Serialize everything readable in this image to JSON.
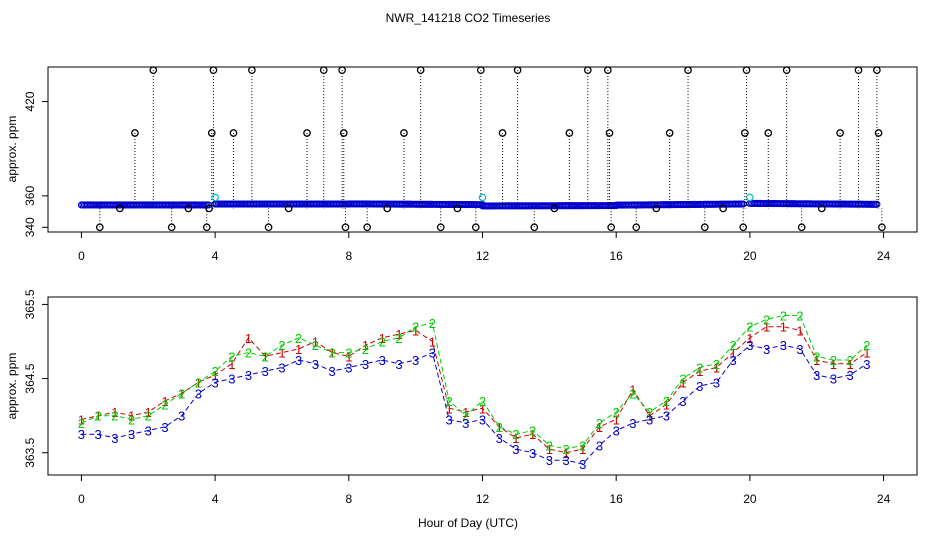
{
  "chart_data": [
    {
      "type": "scatter",
      "title": "NWR_141218  CO2 Timeseries",
      "ylabel": "approx. ppm",
      "xlim": [
        -1,
        25
      ],
      "ylim": [
        337,
        442
      ],
      "x_ticks": [
        0,
        4,
        8,
        12,
        16,
        20,
        24
      ],
      "y_ticks": [
        340,
        360,
        420
      ],
      "baseline_y": 352,
      "grid": false,
      "series": [
        {
          "color": "#000000",
          "marker": "circle",
          "x": [
            0.55,
            1.15,
            1.6,
            2.15,
            2.7,
            3.2,
            3.75,
            3.82,
            3.9,
            3.95,
            4.55,
            5.1,
            5.6,
            6.2,
            6.75,
            7.25,
            7.8,
            7.85,
            7.9,
            8.55,
            9.15,
            9.65,
            10.15,
            10.75,
            11.25,
            11.8,
            11.95,
            12.6,
            13.05,
            13.55,
            14.15,
            14.6,
            15.15,
            15.75,
            15.8,
            15.85,
            16.6,
            17.2,
            17.6,
            18.15,
            18.65,
            19.2,
            19.8,
            19.85,
            19.9,
            20.55,
            21.1,
            21.55,
            22.15,
            22.7,
            23.25,
            23.8,
            23.85,
            23.95
          ],
          "y": [
            340,
            352,
            400,
            440,
            340,
            352,
            340,
            352,
            400,
            440,
            400,
            440,
            340,
            352,
            400,
            440,
            440,
            400,
            340,
            340,
            352,
            400,
            440,
            340,
            352,
            340,
            440,
            400,
            440,
            340,
            352,
            400,
            440,
            440,
            400,
            340,
            340,
            352,
            400,
            440,
            340,
            352,
            340,
            400,
            440,
            400,
            440,
            340,
            352,
            400,
            440,
            440,
            400,
            340
          ]
        },
        {
          "color": "#00c0c0",
          "marker": "circle",
          "x": [
            4.0,
            12.0,
            20.0
          ],
          "y": [
            359,
            359,
            359
          ]
        },
        {
          "color": "#0000cc",
          "marker": "circle",
          "segments": [
            {
              "x": [
                0,
                3.8
              ],
              "y": [
                354.2,
                354.2
              ]
            },
            {
              "x": [
                4.0,
                8.0
              ],
              "y": [
                354.8,
                354.8
              ]
            },
            {
              "x": [
                8.0,
                12.0
              ],
              "y": [
                354.9,
                354.4
              ]
            },
            {
              "x": [
                12.0,
                16.0
              ],
              "y": [
                353.6,
                353.8
              ]
            },
            {
              "x": [
                16.0,
                19.8
              ],
              "y": [
                354.1,
                354.8
              ]
            },
            {
              "x": [
                20.0,
                23.8
              ],
              "y": [
                355.2,
                354.6
              ]
            }
          ]
        }
      ]
    },
    {
      "type": "line",
      "xlabel": "Hour of Day (UTC)",
      "ylabel": "approx. ppm",
      "xlim": [
        -1,
        25
      ],
      "ylim": [
        363.2,
        365.6
      ],
      "x_ticks": [
        0,
        4,
        8,
        12,
        16,
        20,
        24
      ],
      "y_ticks": [
        363.5,
        364.5,
        365.5
      ],
      "grid": false,
      "x": [
        0,
        0.5,
        1,
        1.5,
        2,
        2.5,
        3,
        3.5,
        4,
        4.5,
        5,
        5.5,
        6,
        6.5,
        7,
        7.5,
        8,
        8.5,
        9,
        9.5,
        10,
        10.5,
        11,
        11.5,
        12,
        12.5,
        13,
        13.5,
        14,
        14.5,
        15,
        15.5,
        16,
        16.5,
        17,
        17.5,
        18,
        18.5,
        19,
        19.5,
        20,
        20.5,
        21,
        21.5,
        22,
        22.5,
        23,
        23.5
      ],
      "series": [
        {
          "name": "1",
          "color": "#cc0000",
          "values": [
            363.95,
            364.0,
            364.05,
            364.0,
            364.05,
            364.2,
            364.3,
            364.45,
            364.55,
            364.7,
            365.05,
            364.8,
            364.85,
            364.9,
            365.0,
            364.85,
            364.8,
            364.95,
            365.05,
            365.1,
            365.15,
            365.0,
            364.1,
            364.05,
            364.1,
            363.85,
            363.7,
            363.75,
            363.55,
            363.5,
            363.55,
            363.85,
            363.95,
            364.35,
            364.0,
            364.15,
            364.45,
            364.6,
            364.65,
            364.85,
            365.05,
            365.2,
            365.2,
            365.15,
            364.75,
            364.7,
            364.7,
            364.85
          ]
        },
        {
          "name": "2",
          "color": "#00cc00",
          "values": [
            363.9,
            364.0,
            364.0,
            363.95,
            364.0,
            364.15,
            364.3,
            364.45,
            364.6,
            364.8,
            364.85,
            364.8,
            364.95,
            365.05,
            364.95,
            364.85,
            364.85,
            364.9,
            365.0,
            365.05,
            365.2,
            365.25,
            364.2,
            364.0,
            364.2,
            363.85,
            363.75,
            363.8,
            363.6,
            363.55,
            363.6,
            363.9,
            364.05,
            364.3,
            364.05,
            364.2,
            364.5,
            364.65,
            364.7,
            364.95,
            365.2,
            365.3,
            365.35,
            365.35,
            364.8,
            364.75,
            364.75,
            364.95
          ]
        },
        {
          "name": "3",
          "color": "#0000cc",
          "values": [
            363.75,
            363.75,
            363.7,
            363.75,
            363.8,
            363.85,
            364.0,
            364.3,
            364.45,
            364.5,
            364.55,
            364.6,
            364.65,
            364.75,
            364.7,
            364.6,
            364.65,
            364.7,
            364.75,
            364.7,
            364.75,
            364.85,
            363.95,
            363.9,
            363.95,
            363.7,
            363.55,
            363.5,
            363.4,
            363.4,
            363.35,
            363.6,
            363.8,
            363.9,
            363.95,
            364.0,
            364.2,
            364.4,
            364.45,
            364.75,
            364.95,
            364.9,
            364.95,
            364.9,
            364.55,
            364.5,
            364.55,
            364.7
          ]
        }
      ]
    }
  ]
}
